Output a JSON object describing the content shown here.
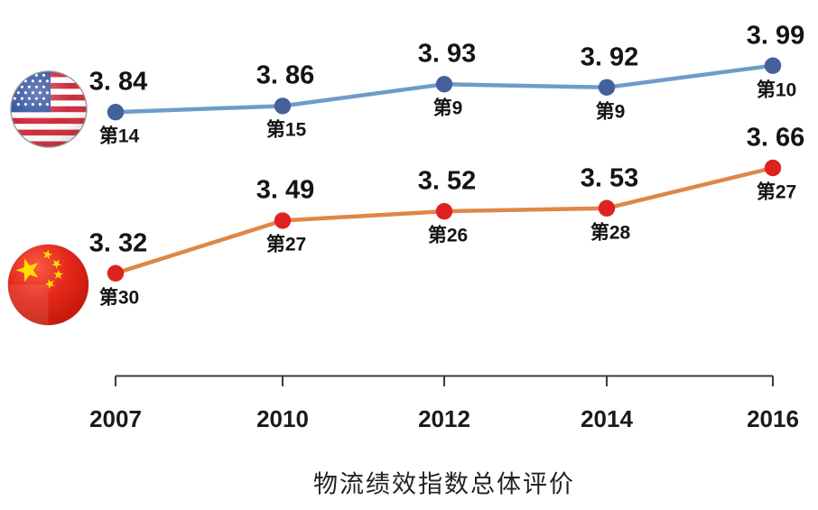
{
  "page": {
    "background": "#ffffff"
  },
  "title": "物流绩效指数总体评价",
  "icons": {
    "usa_flag": "usa-flag-icon",
    "china_flag": "china-flag-icon"
  },
  "chart_data": {
    "type": "line",
    "title": "物流绩效指数总体评价",
    "categories": [
      "2007",
      "2010",
      "2012",
      "2014",
      "2016"
    ],
    "series": [
      {
        "name": "USA",
        "flag_icon": "usa-flag-icon",
        "values": [
          3.84,
          3.86,
          3.93,
          3.92,
          3.99
        ],
        "value_labels": [
          "3. 84",
          "3. 86",
          "3. 93",
          "3. 92",
          "3. 99"
        ],
        "rank_labels": [
          "第14",
          "第15",
          "第9",
          "第9",
          "第10"
        ],
        "line_color": "#6E9CC9",
        "marker_color": "#44619B"
      },
      {
        "name": "China",
        "flag_icon": "china-flag-icon",
        "values": [
          3.32,
          3.49,
          3.52,
          3.53,
          3.66
        ],
        "value_labels": [
          "3. 32",
          "3. 49",
          "3. 52",
          "3. 53",
          "3. 66"
        ],
        "rank_labels": [
          "第30",
          "第27",
          "第26",
          "第28",
          "第27"
        ],
        "line_color": "#DE8748",
        "marker_color": "#DE2220"
      }
    ],
    "xlabel": "",
    "ylabel": "",
    "grid": false,
    "legend_position": "flag icons left of each line",
    "axis_color": "#3B3B3B",
    "label_color": "#141414",
    "flag_colors": {
      "usa_stripe_red": "#CC2B3B",
      "usa_canton_blue": "#2E4E9E",
      "china_red": "#E6281A",
      "china_star_yellow": "#FFDE00"
    }
  }
}
